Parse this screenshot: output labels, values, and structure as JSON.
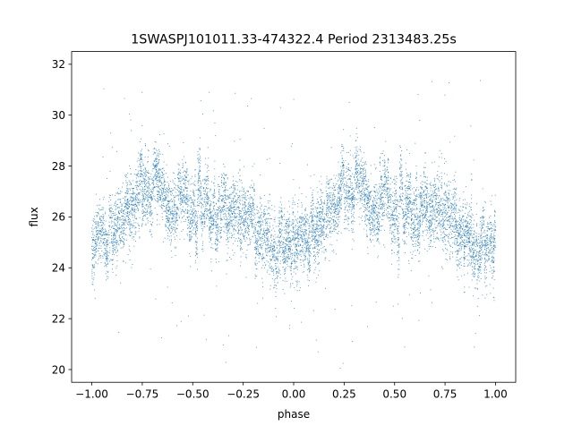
{
  "chart_data": {
    "type": "scatter",
    "title": "1SWASPJ101011.33-474322.4 Period 2313483.25s",
    "xlabel": "phase",
    "ylabel": "flux",
    "xlim": [
      -1.1,
      1.1
    ],
    "ylim": [
      19.5,
      32.5
    ],
    "x_ticks": [
      -1.0,
      -0.75,
      -0.5,
      -0.25,
      0.0,
      0.25,
      0.5,
      0.75,
      1.0
    ],
    "x_tick_labels": [
      "−1.00",
      "−0.75",
      "−0.50",
      "−0.25",
      "0.00",
      "0.25",
      "0.50",
      "0.75",
      "1.00"
    ],
    "y_ticks": [
      20,
      22,
      24,
      26,
      28,
      30,
      32
    ],
    "y_tick_labels": [
      "20",
      "22",
      "24",
      "26",
      "28",
      "30",
      "32"
    ],
    "grid": false,
    "marker_color": "#1f77b4",
    "x_range": [
      -1.0,
      1.0
    ],
    "periodicity": 1.0,
    "mean_curve": {
      "phase": [
        0.0,
        0.1,
        0.2,
        0.3,
        0.4,
        0.5,
        0.6,
        0.7,
        0.8,
        0.9,
        1.0
      ],
      "flux": [
        25.0,
        25.6,
        26.6,
        27.1,
        26.9,
        26.3,
        26.2,
        26.6,
        25.9,
        24.8,
        25.0
      ]
    },
    "scatter_sigma": 0.9,
    "outlier_fraction": 0.02,
    "n_points_estimate": 9000
  }
}
